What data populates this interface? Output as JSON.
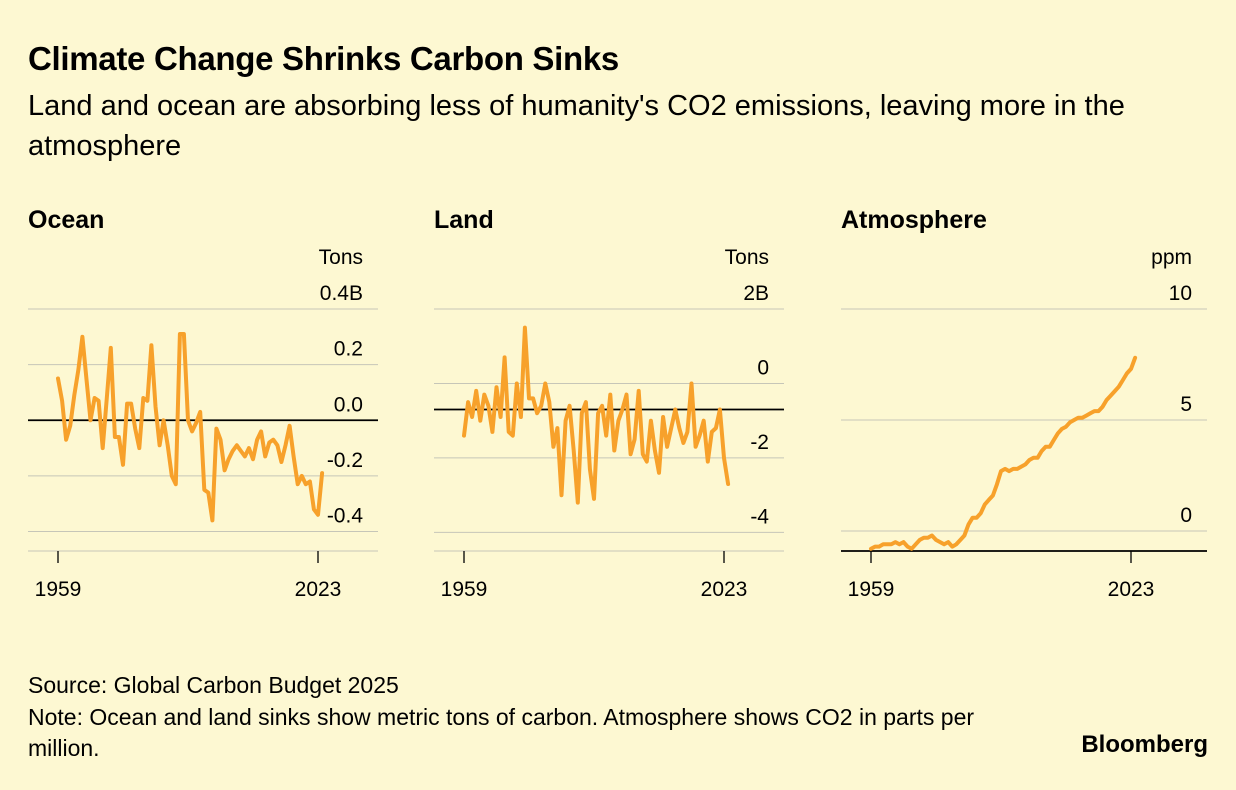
{
  "header": {
    "title": "Climate Change Shrinks Carbon Sinks",
    "subtitle": "Land and ocean are absorbing less of humanity's CO2 emissions, leaving more in the atmosphere"
  },
  "footer": {
    "source": "Source: Global Carbon Budget 2025",
    "note": "Note: Ocean and land sinks show metric tons of carbon. Atmosphere shows CO2 in parts per million.",
    "brand": "Bloomberg"
  },
  "colors": {
    "background": "#fdf8d2",
    "line": "#f7a12b",
    "grid": "#c6c6b8",
    "zero": "#000000"
  },
  "chart_data": [
    {
      "type": "line",
      "title": "Ocean",
      "unit": "Tons",
      "x_ticks": [
        "1959",
        "2023"
      ],
      "xlim": [
        1959,
        2023
      ],
      "ylim": [
        -0.47,
        0.4
      ],
      "y_ticks": [
        {
          "value": 0.4,
          "label": "0.4B"
        },
        {
          "value": 0.2,
          "label": "0.2"
        },
        {
          "value": 0.0,
          "label": "0.0"
        },
        {
          "value": -0.2,
          "label": "-0.2"
        },
        {
          "value": -0.4,
          "label": "-0.4"
        }
      ],
      "reference_line": 0.0,
      "grid": true,
      "series": [
        {
          "x_start": 1959,
          "values": [
            0.15,
            0.07,
            -0.07,
            -0.02,
            0.09,
            0.18,
            0.3,
            0.15,
            0.0,
            0.08,
            0.07,
            -0.1,
            0.08,
            0.26,
            -0.06,
            -0.06,
            -0.16,
            0.06,
            0.06,
            -0.03,
            -0.1,
            0.08,
            0.07,
            0.27,
            0.05,
            -0.09,
            0.0,
            -0.09,
            -0.2,
            -0.23,
            0.31,
            0.31,
            0.0,
            -0.04,
            -0.01,
            0.03,
            -0.25,
            -0.26,
            -0.36,
            -0.03,
            -0.07,
            -0.18,
            -0.14,
            -0.11,
            -0.09,
            -0.11,
            -0.13,
            -0.1,
            -0.14,
            -0.07,
            -0.04,
            -0.13,
            -0.08,
            -0.07,
            -0.09,
            -0.15,
            -0.09,
            -0.02,
            -0.13,
            -0.23,
            -0.2,
            -0.23,
            -0.22,
            -0.32,
            -0.34,
            -0.19
          ]
        }
      ]
    },
    {
      "type": "line",
      "title": "Land",
      "unit": "Tons",
      "x_ticks": [
        "1959",
        "2023"
      ],
      "xlim": [
        1959,
        2023
      ],
      "ylim": [
        -4.5,
        2.0
      ],
      "y_ticks": [
        {
          "value": 2,
          "label": "2B"
        },
        {
          "value": 0,
          "label": "0"
        },
        {
          "value": -2,
          "label": "-2"
        },
        {
          "value": -4,
          "label": "-4"
        }
      ],
      "reference_line": -0.7,
      "grid": true,
      "series": [
        {
          "x_start": 1959,
          "values": [
            -1.4,
            -0.5,
            -0.9,
            -0.2,
            -1.0,
            -0.3,
            -0.6,
            -1.3,
            -0.1,
            -0.9,
            0.7,
            -1.3,
            -1.4,
            0.0,
            -0.9,
            1.5,
            -0.4,
            -0.4,
            -0.8,
            -0.6,
            0.0,
            -0.5,
            -1.7,
            -1.2,
            -3.0,
            -1.0,
            -0.6,
            -1.8,
            -3.2,
            -0.8,
            -0.5,
            -2.3,
            -3.1,
            -0.8,
            -0.6,
            -1.4,
            -0.3,
            -1.8,
            -1.0,
            -0.7,
            -0.3,
            -1.9,
            -1.5,
            -0.2,
            -1.9,
            -2.1,
            -1.0,
            -1.8,
            -2.4,
            -0.9,
            -1.7,
            -1.2,
            -0.7,
            -1.2,
            -1.6,
            -1.3,
            0.0,
            -1.7,
            -1.4,
            -1.0,
            -2.1,
            -1.3,
            -1.2,
            -0.7,
            -2.0,
            -2.7
          ]
        }
      ]
    },
    {
      "type": "line",
      "title": "Atmosphere",
      "unit": "ppm",
      "x_ticks": [
        "1959",
        "2023"
      ],
      "xlim": [
        1959,
        2023
      ],
      "ylim": [
        -0.9,
        10
      ],
      "y_ticks": [
        {
          "value": 10,
          "label": "10"
        },
        {
          "value": 5,
          "label": "5"
        },
        {
          "value": 0,
          "label": "0"
        }
      ],
      "reference_line": -0.9,
      "grid": true,
      "series": [
        {
          "x_start": 1959,
          "values": [
            -0.8,
            -0.7,
            -0.7,
            -0.6,
            -0.6,
            -0.6,
            -0.5,
            -0.6,
            -0.5,
            -0.7,
            -0.8,
            -0.6,
            -0.4,
            -0.3,
            -0.3,
            -0.2,
            -0.4,
            -0.5,
            -0.6,
            -0.5,
            -0.7,
            -0.6,
            -0.4,
            -0.2,
            0.3,
            0.6,
            0.6,
            0.8,
            1.2,
            1.4,
            1.6,
            2.1,
            2.7,
            2.8,
            2.7,
            2.8,
            2.8,
            2.9,
            3.0,
            3.2,
            3.3,
            3.3,
            3.6,
            3.8,
            3.8,
            4.1,
            4.4,
            4.6,
            4.7,
            4.9,
            5.0,
            5.1,
            5.1,
            5.2,
            5.3,
            5.4,
            5.4,
            5.6,
            5.9,
            6.1,
            6.3,
            6.5,
            6.8,
            7.1,
            7.3,
            7.8
          ]
        }
      ]
    }
  ]
}
